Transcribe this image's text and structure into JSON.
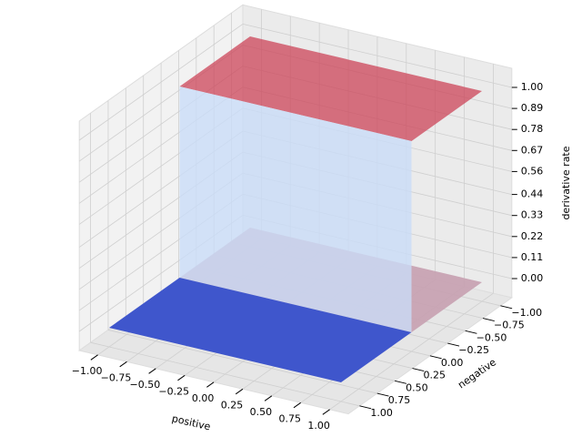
{
  "chart_data": {
    "type": "surface",
    "xlabel": "positive",
    "ylabel": "negative",
    "zlabel": "derivative rate",
    "xlim": [
      -1,
      1
    ],
    "ylim": [
      -1,
      1
    ],
    "zlim": [
      0,
      1
    ],
    "xticks": [
      {
        "value": -1,
        "label": "−1.00"
      },
      {
        "value": -0.75,
        "label": "−0.75"
      },
      {
        "value": -0.5,
        "label": "−0.50"
      },
      {
        "value": -0.25,
        "label": "−0.25"
      },
      {
        "value": 0,
        "label": "0.00"
      },
      {
        "value": 0.25,
        "label": "0.25"
      },
      {
        "value": 0.5,
        "label": "0.50"
      },
      {
        "value": 0.75,
        "label": "0.75"
      },
      {
        "value": 1,
        "label": "1.00"
      }
    ],
    "yticks": [
      {
        "value": -1,
        "label": "−1.00"
      },
      {
        "value": -0.75,
        "label": "−0.75"
      },
      {
        "value": -0.5,
        "label": "−0.50"
      },
      {
        "value": -0.25,
        "label": "−0.25"
      },
      {
        "value": 0,
        "label": "0.00"
      },
      {
        "value": 0.25,
        "label": "0.25"
      },
      {
        "value": 0.5,
        "label": "0.50"
      },
      {
        "value": 0.75,
        "label": "0.75"
      },
      {
        "value": 1,
        "label": "1.00"
      }
    ],
    "zticks": [
      {
        "value": 0,
        "label": "0.00"
      },
      {
        "value": 0.11,
        "label": "0.11"
      },
      {
        "value": 0.22,
        "label": "0.22"
      },
      {
        "value": 0.33,
        "label": "0.33"
      },
      {
        "value": 0.44,
        "label": "0.44"
      },
      {
        "value": 0.56,
        "label": "0.56"
      },
      {
        "value": 0.67,
        "label": "0.67"
      },
      {
        "value": 0.78,
        "label": "0.78"
      },
      {
        "value": 0.89,
        "label": "0.89"
      },
      {
        "value": 1,
        "label": "1.00"
      }
    ],
    "y_edges": [
      -1,
      0,
      1
    ],
    "z_values": [
      1,
      0
    ],
    "colors": [
      "#cc4458",
      "#3f56cc"
    ],
    "grid": true
  }
}
